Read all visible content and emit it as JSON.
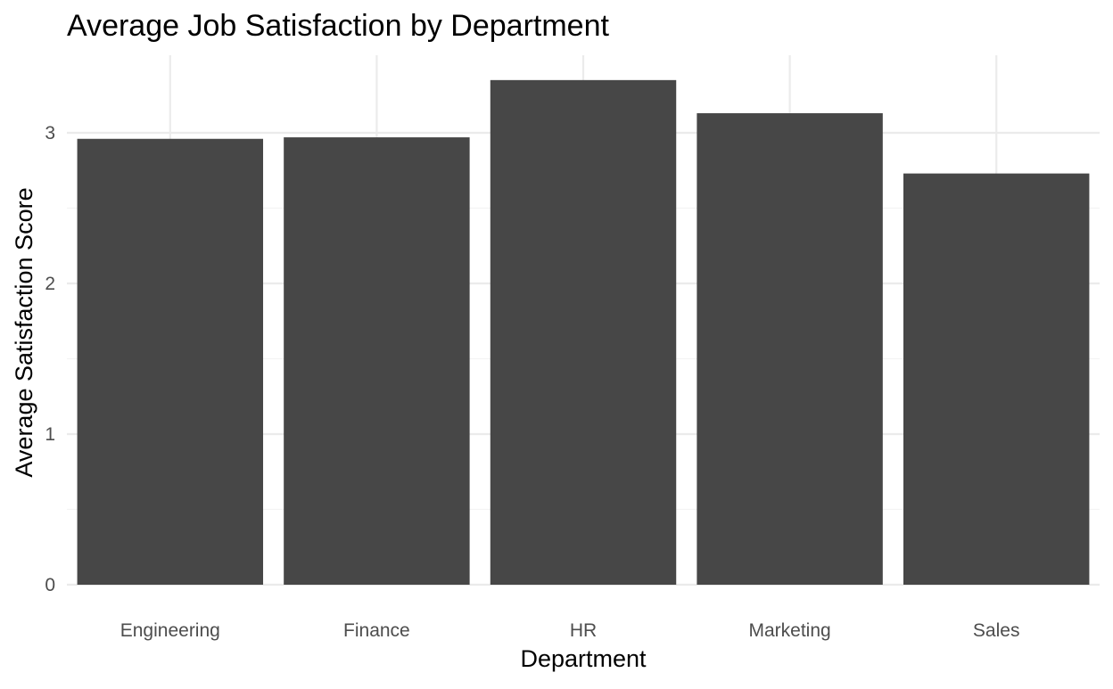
{
  "chart_data": {
    "type": "bar",
    "title": "Average Job Satisfaction by Department",
    "xlabel": "Department",
    "ylabel": "Average Satisfaction Score",
    "categories": [
      "Engineering",
      "Finance",
      "HR",
      "Marketing",
      "Sales"
    ],
    "values": [
      2.96,
      2.97,
      3.35,
      3.13,
      2.73
    ],
    "ylim": [
      0,
      3.5
    ],
    "yticks": [
      "0",
      "1",
      "2",
      "3"
    ],
    "grid": true,
    "legend": "none",
    "colors": {
      "bar": "#474747",
      "grid_major": "#ebebeb",
      "grid_minor": "#f4f4f4",
      "tick_text": "#4d4d4d"
    }
  }
}
